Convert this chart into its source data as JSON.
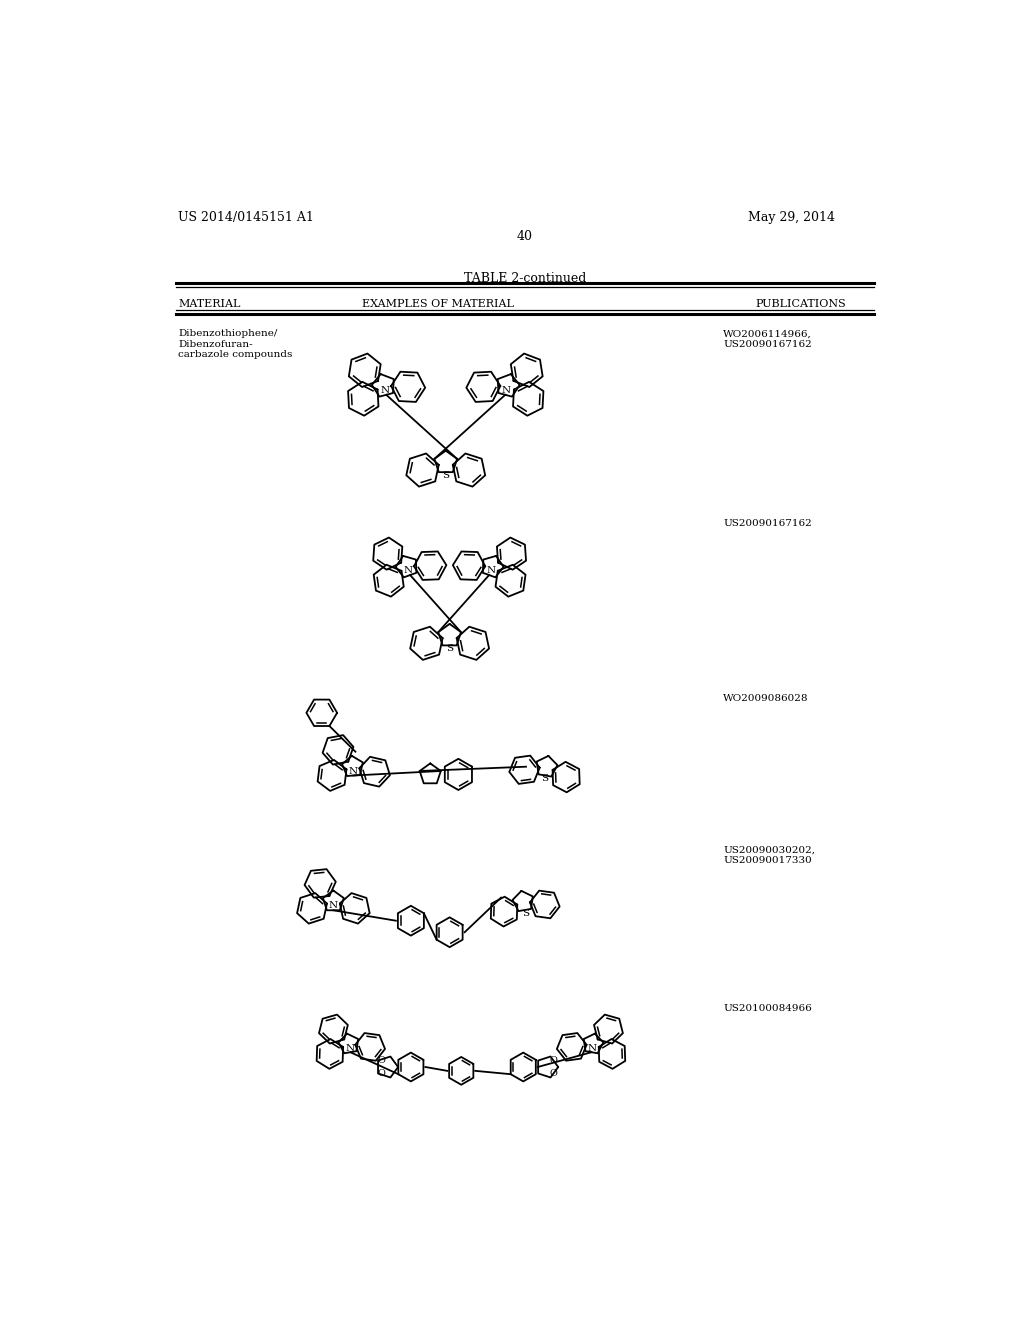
{
  "page_number": "40",
  "left_header": "US 2014/0145151 A1",
  "right_header": "May 29, 2014",
  "table_title": "TABLE 2-continued",
  "col1_header": "MATERIAL",
  "col2_header": "EXAMPLES OF MATERIAL",
  "col3_header": "PUBLICATIONS",
  "material_label": "Dibenzothiophene/\nDibenzofuran-\ncarbazole compounds",
  "pubs": [
    "WO2006114966,\nUS20090167162",
    "US20090167162",
    "WO2009086028",
    "US20090030202,\nUS20090017330",
    "US20100084966"
  ],
  "bg_color": "#ffffff",
  "text_color": "#000000",
  "line_color": "#000000"
}
